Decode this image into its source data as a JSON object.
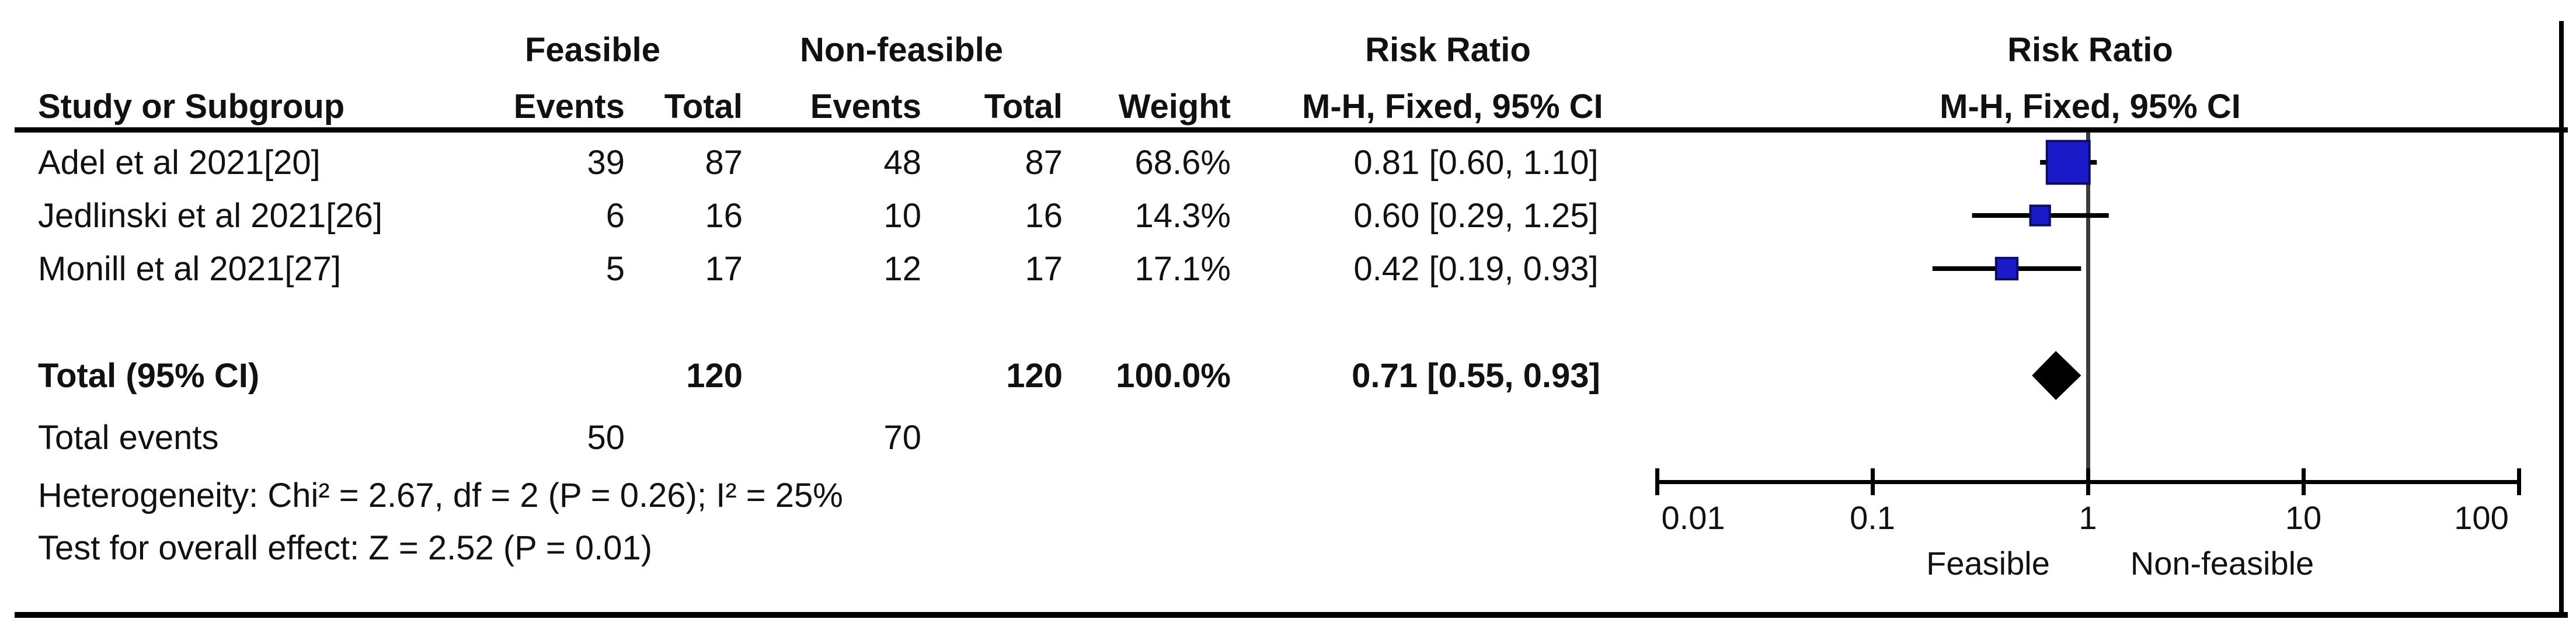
{
  "header": {
    "study": "Study or Subgroup",
    "group_feasible": "Feasible",
    "group_nonfeasible": "Non-feasible",
    "events": "Events",
    "total": "Total",
    "weight": "Weight",
    "risk_ratio": "Risk Ratio",
    "method": "M-H, Fixed, 95% CI"
  },
  "footer": {
    "heterogeneity": "Heterogeneity: Chi² = 2.67, df = 2 (P = 0.26); I² = 25%",
    "overall_effect": "Test for overall effect: Z = 2.52 (P = 0.01)"
  },
  "chart_data": {
    "type": "forest",
    "effect_measure": "Risk Ratio",
    "method": "M-H, Fixed, 95% CI",
    "x_axis": {
      "scale": "log",
      "ticks": [
        0.01,
        0.1,
        1,
        10,
        100
      ],
      "tick_labels": [
        "0.01",
        "0.1",
        "1",
        "10",
        "100"
      ]
    },
    "direction_labels": {
      "left": "Feasible",
      "right": "Non-feasible"
    },
    "studies": [
      {
        "label": "Adel et al 2021[20]",
        "feasible_events": 39,
        "feasible_total": 87,
        "nonfeasible_events": 48,
        "nonfeasible_total": 87,
        "weight": "68.6%",
        "weight_pct": 68.6,
        "rr_text": "0.81 [0.60, 1.10]",
        "rr": 0.81,
        "ci_low": 0.6,
        "ci_high": 1.1
      },
      {
        "label": "Jedlinski et al 2021[26]",
        "feasible_events": 6,
        "feasible_total": 16,
        "nonfeasible_events": 10,
        "nonfeasible_total": 16,
        "weight": "14.3%",
        "weight_pct": 14.3,
        "rr_text": "0.60 [0.29, 1.25]",
        "rr": 0.6,
        "ci_low": 0.29,
        "ci_high": 1.25
      },
      {
        "label": "Monill et al 2021[27]",
        "feasible_events": 5,
        "feasible_total": 17,
        "nonfeasible_events": 12,
        "nonfeasible_total": 17,
        "weight": "17.1%",
        "weight_pct": 17.1,
        "rr_text": "0.42 [0.19, 0.93]",
        "rr": 0.42,
        "ci_low": 0.19,
        "ci_high": 0.93
      }
    ],
    "total": {
      "label": "Total (95% CI)",
      "feasible_total": 120,
      "nonfeasible_total": 120,
      "weight": "100.0%",
      "rr_text": "0.71 [0.55, 0.93]",
      "rr": 0.71,
      "ci_low": 0.55,
      "ci_high": 0.93
    },
    "total_events": {
      "label": "Total events",
      "feasible": 50,
      "nonfeasible": 70
    },
    "colors": {
      "square_fill": "#1a1ac8",
      "square_edge": "#0d0d60",
      "line_black": "#000000",
      "null_line_gray": "#3c3c3c"
    }
  }
}
